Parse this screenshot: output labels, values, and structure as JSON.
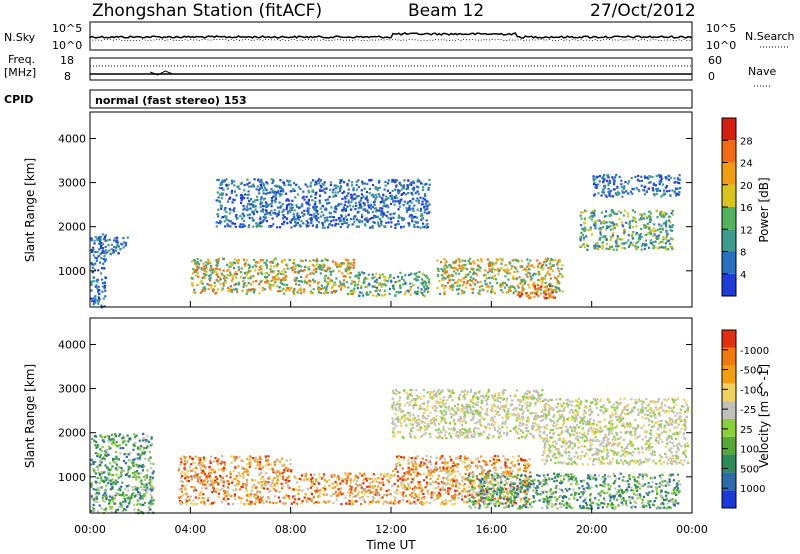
{
  "header": {
    "station": "Zhongshan Station (fitACF)",
    "beam": "Beam 12",
    "date": "27/Oct/2012"
  },
  "top_panels": {
    "nsky_label": "N.Sky",
    "nsky_ticks": [
      "10^5",
      "10^0"
    ],
    "nsearch_label": "N.Search",
    "nsearch_ticks": [
      "10^5",
      "10^0"
    ],
    "freq_label_1": "Freq.",
    "freq_label_2": "[MHz]",
    "freq_ticks": [
      "18",
      "8"
    ],
    "nave_ticks": [
      "60",
      "0"
    ],
    "nave_label": "Nave",
    "cpid_label": "CPID",
    "cpid_text": "normal (fast stereo) 153"
  },
  "chart_data": [
    {
      "type": "heatmap",
      "name": "power",
      "ylabel": "Slant Range [km]",
      "ylim": [
        180,
        4600
      ],
      "yticks": [
        "1000",
        "2000",
        "3000",
        "4000"
      ],
      "xlim": [
        "00:00",
        "24:00"
      ],
      "colorbar_label": "Power [dB]",
      "colorbar_ticks": [
        "4",
        "8",
        "12",
        "16",
        "20",
        "24",
        "28"
      ],
      "colorbar_colors": [
        "#1f3bd8",
        "#2a6fc0",
        "#3f9b8c",
        "#52b25e",
        "#d9c41f",
        "#f29b14",
        "#f26b14",
        "#d42010"
      ],
      "scatter_regions": [
        {
          "t0": 0.0,
          "t1": 0.6,
          "r0": 200,
          "r1": 1900,
          "level": "low"
        },
        {
          "t0": 0.3,
          "t1": 1.5,
          "r0": 1400,
          "r1": 1800,
          "level": "low"
        },
        {
          "t0": 4.0,
          "t1": 10.5,
          "r0": 500,
          "r1": 1300,
          "level": "high"
        },
        {
          "t0": 10.5,
          "t1": 13.5,
          "r0": 450,
          "r1": 1000,
          "level": "mid"
        },
        {
          "t0": 13.8,
          "t1": 18.8,
          "r0": 500,
          "r1": 1300,
          "level": "high"
        },
        {
          "t0": 17.0,
          "t1": 18.5,
          "r0": 400,
          "r1": 700,
          "level": "peak"
        },
        {
          "t0": 19.5,
          "t1": 23.2,
          "r0": 1500,
          "r1": 2400,
          "level": "mid"
        },
        {
          "t0": 20.0,
          "t1": 23.5,
          "r0": 2700,
          "r1": 3200,
          "level": "low"
        },
        {
          "t0": 5.0,
          "t1": 13.5,
          "r0": 2000,
          "r1": 3100,
          "level": "low"
        }
      ]
    },
    {
      "type": "heatmap",
      "name": "velocity",
      "ylabel": "Slant Range [km]",
      "ylim": [
        180,
        4600
      ],
      "yticks": [
        "1000",
        "2000",
        "3000",
        "4000"
      ],
      "xlim": [
        "00:00",
        "24:00"
      ],
      "xticks": [
        "00:00",
        "04:00",
        "08:00",
        "12:00",
        "16:00",
        "20:00",
        "00:00"
      ],
      "xlabel": "Time UT",
      "colorbar_label": "Velocity [m s^-1]",
      "colorbar_ticks": [
        "1000",
        "500",
        "100",
        "25",
        "-25",
        "-100",
        "-500",
        "-1000"
      ],
      "colorbar_colors": [
        "#1a3ad6",
        "#2c6ba8",
        "#2f8a5a",
        "#55a838",
        "#8ccf3c",
        "#c0c0b8",
        "#f0d060",
        "#f2a012",
        "#f07a10",
        "#e03010"
      ],
      "scatter_regions": [
        {
          "t0": 0.0,
          "t1": 2.5,
          "r0": 200,
          "r1": 2000,
          "level": "green"
        },
        {
          "t0": 3.5,
          "t1": 8.0,
          "r0": 400,
          "r1": 1500,
          "level": "orange"
        },
        {
          "t0": 8.0,
          "t1": 12.0,
          "r0": 400,
          "r1": 1100,
          "level": "orange"
        },
        {
          "t0": 12.0,
          "t1": 17.5,
          "r0": 400,
          "r1": 1500,
          "level": "orange"
        },
        {
          "t0": 15.0,
          "t1": 23.5,
          "r0": 300,
          "r1": 1100,
          "level": "green"
        },
        {
          "t0": 18.0,
          "t1": 23.8,
          "r0": 1300,
          "r1": 2800,
          "level": "grey"
        },
        {
          "t0": 12.0,
          "t1": 18.0,
          "r0": 1900,
          "r1": 3000,
          "level": "grey"
        }
      ]
    }
  ],
  "colors": {
    "axis": "#000000",
    "background": "#ffffff"
  }
}
